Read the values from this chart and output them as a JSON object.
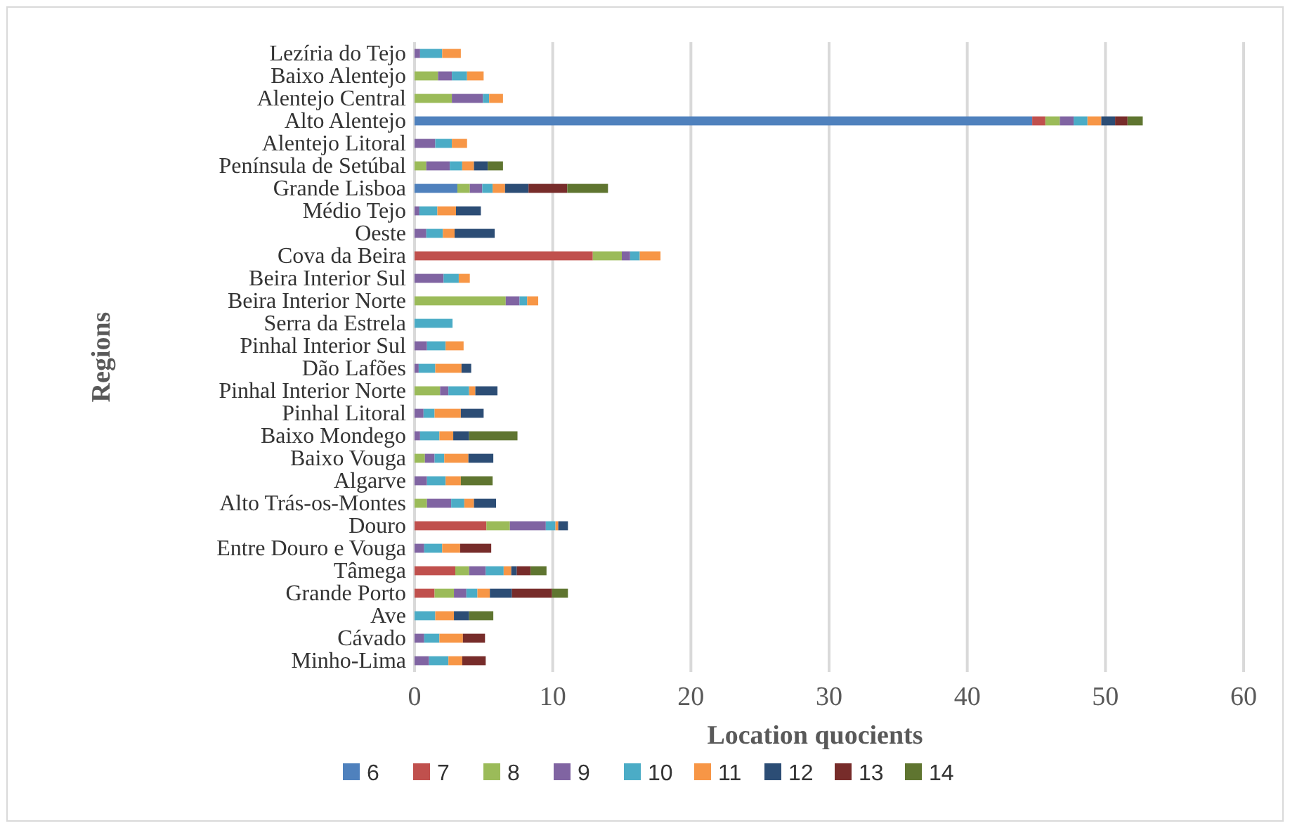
{
  "chart_data": {
    "type": "bar",
    "orientation": "horizontal",
    "stacked": true,
    "xlabel": "Location quocients",
    "ylabel": "Regions",
    "categories": [
      "Lezíria do Tejo",
      "Baixo Alentejo",
      "Alentejo Central",
      "Alto Alentejo",
      "Alentejo Litoral",
      "Península de Setúbal",
      "Grande Lisboa",
      "Médio Tejo",
      "Oeste",
      "Cova da Beira",
      "Beira Interior Sul",
      "Beira Interior Norte",
      "Serra da Estrela",
      "Pinhal Interior Sul",
      "Dão Lafões",
      "Pinhal Interior Norte",
      "Pinhal Litoral",
      "Baixo Mondego",
      "Baixo Vouga",
      "Algarve",
      "Alto Trás-os-Montes",
      "Douro",
      "Entre Douro e Vouga",
      "Tâmega",
      "Grande Porto",
      "Ave",
      "Cávado",
      "Minho-Lima"
    ],
    "series": [
      {
        "name": "6",
        "color": "#4f81bd",
        "values": [
          0,
          0,
          0,
          44.7,
          0,
          0,
          3.1,
          0,
          0,
          0,
          0,
          0,
          0,
          0,
          0,
          0,
          0,
          0,
          0,
          0,
          0,
          0,
          0,
          0,
          0,
          0,
          0,
          0
        ]
      },
      {
        "name": "7",
        "color": "#c0504d",
        "values": [
          0,
          0,
          0,
          0.95,
          0,
          0,
          0,
          0,
          0,
          12.9,
          0,
          0,
          0,
          0,
          0,
          0,
          0,
          0,
          0,
          0,
          0,
          5.2,
          0,
          2.95,
          1.45,
          0,
          0,
          0
        ]
      },
      {
        "name": "8",
        "color": "#9bbb59",
        "values": [
          0,
          1.7,
          2.7,
          1.05,
          0,
          0.85,
          0.9,
          0,
          0,
          2.1,
          0,
          6.6,
          0,
          0,
          0,
          1.85,
          0,
          0,
          0.75,
          0,
          0.9,
          1.7,
          0,
          1.0,
          1.4,
          0,
          0,
          0
        ]
      },
      {
        "name": "9",
        "color": "#8064a2",
        "values": [
          0.4,
          1.0,
          2.25,
          1.0,
          1.5,
          1.7,
          0.9,
          0.35,
          0.85,
          0.6,
          2.1,
          1.0,
          0,
          0.9,
          0.3,
          0.6,
          0.65,
          0.4,
          0.7,
          0.9,
          1.75,
          2.6,
          0.7,
          1.2,
          0.9,
          0,
          0.7,
          1.05
        ]
      },
      {
        "name": "10",
        "color": "#4bacc6",
        "values": [
          1.6,
          1.1,
          0.45,
          1.0,
          1.2,
          0.9,
          0.75,
          1.3,
          1.2,
          0.7,
          1.1,
          0.55,
          2.75,
          1.35,
          1.2,
          1.5,
          0.8,
          1.4,
          0.7,
          1.35,
          0.95,
          0.7,
          1.3,
          1.3,
          0.8,
          1.5,
          1.1,
          1.4
        ]
      },
      {
        "name": "11",
        "color": "#f79646",
        "values": [
          1.35,
          1.2,
          1.0,
          1.0,
          1.1,
          0.85,
          0.9,
          1.35,
          0.85,
          1.5,
          0.8,
          0.8,
          0,
          1.3,
          1.9,
          0.45,
          1.9,
          1.0,
          1.75,
          1.1,
          0.7,
          0.2,
          1.3,
          0.55,
          0.9,
          1.35,
          1.7,
          1.0
        ]
      },
      {
        "name": "12",
        "color": "#2c4d75",
        "values": [
          0,
          0,
          0,
          1.0,
          0,
          1.0,
          1.7,
          1.8,
          2.9,
          0,
          0,
          0,
          0,
          0,
          0.7,
          1.6,
          1.65,
          1.15,
          1.8,
          0,
          1.6,
          0.7,
          0,
          0.4,
          1.6,
          1.1,
          0,
          0
        ]
      },
      {
        "name": "13",
        "color": "#772c2a",
        "values": [
          0,
          0,
          0,
          0.9,
          0,
          0,
          2.8,
          0,
          0,
          0,
          0,
          0,
          0,
          0,
          0,
          0,
          0,
          0,
          0,
          0,
          0,
          0,
          2.25,
          1.0,
          2.9,
          0,
          1.6,
          1.7
        ]
      },
      {
        "name": "14",
        "color": "#5f7530",
        "values": [
          0,
          0,
          0,
          1.1,
          0,
          1.1,
          2.95,
          0,
          0,
          0,
          0,
          0,
          0,
          0,
          0,
          0,
          0,
          3.5,
          0,
          2.3,
          0,
          0,
          0,
          1.15,
          1.15,
          1.75,
          0,
          0
        ]
      }
    ],
    "xlim": [
      0,
      60
    ],
    "xticks": [
      0,
      10,
      20,
      30,
      40,
      50,
      60
    ],
    "grid": "x",
    "legend": "bottom"
  }
}
